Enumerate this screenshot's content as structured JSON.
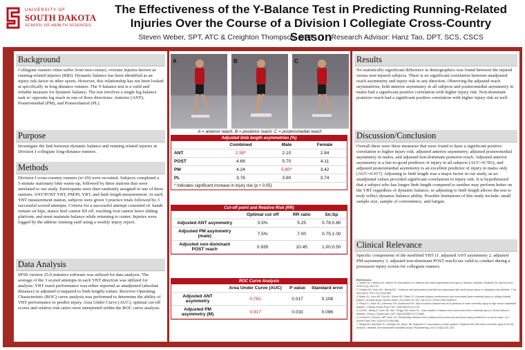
{
  "header": {
    "logo": {
      "line1": "UNIVERSITY OF",
      "line2": "SOUTH DAKOTA",
      "line3": "SCHOOL OF HEALTH SCIENCES",
      "color": "#b5121b"
    },
    "title": "The Effectiveness of the Y-Balance Test in Predicting Running-Related Injuries Over the Course of a Division I Collegiate Cross-Country Season",
    "authors": "Steven Weber, SPT, ATC & Creighton Thompson, SPT    |    Research Advisor: Hanz Tao, DPT, SCS, CSCS"
  },
  "colors": {
    "frame": "#a12a25",
    "accent": "#b5121b",
    "heading_bg": "#dcdcdc"
  },
  "background": {
    "title": "Background",
    "text": "Collegiate runners often suffer from non-contact, overuse injuries known as running-related injuries (RRI). Dynamic balance has been identified as an injury risk factor in other sports. However, this relationship has not been looked at specifically in long distance runners. The Y-balance test is a valid and reliable measure for dynamic balance. The test involves a single leg balance task w/ opposite leg reach in one of three directions: Anterior (ANT), Posteromedial (PM), and Posterolateral (PL)."
  },
  "purpose": {
    "title": "Purpose",
    "text": "Investigate the link between dynamic balance and running related injuries in Division I collegiate long-distance runners."
  },
  "methods": {
    "title": "Methods",
    "text": "Division I cross-country runners (n=29) were recruited. Subjects completed a 5-minute stationary bike warm-up, followed by three stations that were unrelated to our study. Participants were then randomly assigned to one of three stations: ANT/POST YBT, PM/PL YBT, and limb length measurement. At each YBT measurement station, subjects were given 3 practice trials followed by 3 successful scored attempts. Criteria for a successful attempt consisted of: hands remain on hips, stance heel cannot lift off, reaching foot cannot leave sliding platform, and must maintain balance while returning to center. Injuries were logged by the athletic training staff using a weekly injury report."
  },
  "data_analysis": {
    "title": "Data Analysis",
    "text": "SPSS version 25.0 statistics software was utilized for data analysis. The average of the 3 scored attempts in each YBT direction was utilized for analysis. YBT reach performance was either reported as unadjusted (absolute distance) or adjusted (compared to limb length) values. Receiver Operating Characteristic (ROC) curve analysis was performed to determine the ability of YBT performance to predict injury. Area Under Curve (AUC), optimal cut-off scores and relative risk ratios were interpreted within the ROC curve analysis."
  },
  "photos": {
    "labels": [
      "A",
      "B",
      "C"
    ],
    "caption": "A = anterior reach; B = posterior reach; C = posteromedial reach"
  },
  "table1": {
    "title": "Adjusted limb length asymmetries (%)",
    "headers": [
      "",
      "Combined",
      "Male",
      "Female"
    ],
    "rows": [
      {
        "label": "ANT",
        "combined": "2.59*",
        "male": "2.10",
        "female": "2.84"
      },
      {
        "label": "POST",
        "combined": "4.66",
        "male": "5.70",
        "female": "4.11"
      },
      {
        "label": "PM",
        "combined": "4.24",
        "male": "5.80*",
        "female": "3.42"
      },
      {
        "label": "PL",
        "combined": "3.76",
        "male": "3.80",
        "female": "3.74"
      }
    ],
    "note": "* Indicates significant increase in injury risk (p < 0.05)"
  },
  "table2": {
    "title": "Cut-off point and Relative Risk (RR)",
    "headers": [
      "",
      "Optimal cut off",
      "RR ratio",
      "Sn;Sp"
    ],
    "rows": [
      {
        "label": "Adjusted ANT asymmetry",
        "cutoff": "3.5%",
        "rr": "5.25",
        "snsp": "0.78;0.80"
      },
      {
        "label": "Adjusted PM asymmetry (male)",
        "cutoff": "7.5%",
        "rr": "7.00",
        "snsp": "0.75;1.00"
      },
      {
        "label": "Adjusted non-dominant POST reach",
        "cutoff": "0.935",
        "rr": "10.45",
        "snsp": "1.00;0.50"
      }
    ]
  },
  "table3": {
    "title": "ROC Curve Analysis",
    "headers": [
      "",
      "Area Under Curve (AUC)",
      "P value",
      "Standard error"
    ],
    "rows": [
      {
        "label": "Adjusted ANT asymmetry",
        "auc": "0.781",
        "p": "0.017",
        "se": "0.108"
      },
      {
        "label": "Adjusted PM asymmetry (M)",
        "auc": "0.917",
        "p": "0.033",
        "se": "0.096"
      }
    ]
  },
  "results": {
    "title": "Results",
    "text": "No statistically significant difference in demographics was found between the injured versus non-injured subjects. There is no significant correlation between unadjusted reach asymmetry and injury risk in any direction. Observing the adjusted reach asymmetries, both anterior asymmetry in all subjects and posteromedial asymmetry in males had a significant positive correlation with higher injury risk. Non-dominant posterior reach had a significant positive correlation with higher injury risk as well."
  },
  "discussion": {
    "title": "Discussion/Conclusion",
    "text": "Overall there were three measures that were found to have a significant positive correlation to higher injury risk: adjusted anterior asymmetry, adjusted posteromedial asymmetry in males, and adjusted non-dominant posterior reach. Adjusted anterior asymmetry is a fair-to-good predictor of injury in all subjects (AUC=0.781), and adjusted posteromedial asymmetry is an excellent predictor of injury in males only (AUC=0.917). Adjusting to limb length was a major factor in our study, as no unadjusted values provided significant correlations to injury risk. It is hypothesized that a subject who has longer limb length compared to another may perform better on the YBT regardless of dynamic balance, so adjusting to limb length allows the test to truly reflect dynamic balance ability. Possible limitations of this study include: small sample size, sample of convenience, and fatigue."
  },
  "clinical": {
    "title": "Clinical Relevance",
    "text": "Specific components of the modified YBT (1. adjusted ANT asymmetry 2. adjusted PM asymmetry 3. adjusted non-dominant POST reach) are valid to conduct during a preseason injury screen for collegiate runners."
  },
  "references": {
    "heading": "References",
    "items": [
      "1. Smith CA, Chimera NJ, Warren M. Association of y balance test reach asymmetry and injury in division I athletes. Medicine Sci Sports Exerc. 2015;47(1):136-141.",
      "2. Hartley EM, Hoch MC, Boling MC. Y-balance test performance and BMI are associated with ankle sprain injury in collegiate male athletes. J Sci Med Sport. 2017;21(7):676-680.",
      "3. Butler RJ, Lehr ME, Fink ML, Kiesel KB, Plisky PJ. Dynamic balance performance and noncontact lower extremity injury in college football players: an initial study. Sports Health. 2013;5(5):417-422. doi:10.1177/1941738113498703.",
      "4. Plisky PJ, Rauh MJ, Kaminski TW, Underwood FB. Star excursion balance test as a predictor of lower extremity injury in high school basketball players. J Orthop Sports Phys Ther. 2006;36(12):911-919.",
      "5. Lai WC, Wang D, Chen JB, Vail J, Rugg CM, Hame SL. Lower quarter Y-balance test scores and lower extremity injury in NCAA division I athletes. Orthop J Sports Med. 2017;5(8):2325967117723666.",
      "6. Gonell AC, Romero JAP, Soler LM. Relationship between the y balance test scores and soft tissue injury incidence in a soccer team. Int J Sports Phys Ther. 2015;10(7):955-966.",
      "7. Wright AA, Dischiavi SL, Smoliga JM, Taylor JB, Hegedus EJ. Association of lower quarter Y-balance test with lower extremity injury in NCAA division 1 athletes: an independent validation study. Physiotherapy. 2017;103(2):231-236."
    ]
  }
}
